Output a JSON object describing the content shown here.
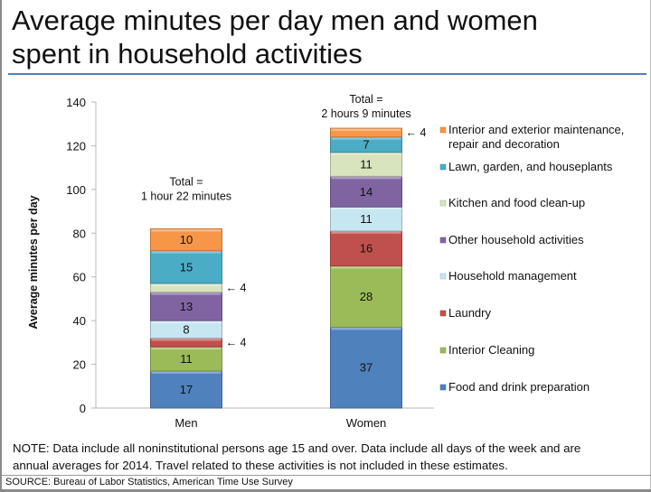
{
  "title_line1": "Average minutes per day men and women",
  "title_line2": "spent in household activities",
  "note_line1": "NOTE: Data include all noninstitutional persons age 15 and over. Data include all days of the week and are",
  "note_line2": "annual averages for 2014. Travel related to these activities is not included in these estimates.",
  "source": "SOURCE: Bureau of Labor Statistics, American Time Use Survey",
  "chart_data": {
    "type": "bar",
    "stacked": true,
    "title": "Average minutes per day men and women spent in household activities",
    "xlabel": "",
    "ylabel": "Average minutes per day",
    "ylim": [
      0,
      140
    ],
    "yticks": [
      0,
      20,
      40,
      60,
      80,
      100,
      120,
      140
    ],
    "grid": false,
    "legend_position": "right",
    "categories": [
      "Men",
      "Women"
    ],
    "series": [
      {
        "name": "Food and drink preparation",
        "color": "#4f81bd",
        "values": [
          17,
          37
        ]
      },
      {
        "name": "Interior Cleaning",
        "color": "#9bbb59",
        "values": [
          11,
          28
        ]
      },
      {
        "name": "Laundry",
        "color": "#c0504d",
        "values": [
          4,
          16
        ]
      },
      {
        "name": "Household management",
        "color": "#c6e6f2",
        "values": [
          8,
          11
        ]
      },
      {
        "name": "Other household activities",
        "color": "#8064a2",
        "values": [
          13,
          14
        ]
      },
      {
        "name": "Kitchen and food clean-up",
        "color": "#d7e4bd",
        "values": [
          4,
          11
        ]
      },
      {
        "name": "Lawn, garden, and houseplants",
        "color": "#4bacc6",
        "values": [
          15,
          7
        ]
      },
      {
        "name": "Interior and exterior maintenance, repair and decoration",
        "color": "#f79646",
        "values": [
          10,
          4
        ]
      }
    ],
    "data_labels": {
      "Men": [
        "17",
        "11",
        "",
        "8",
        "13",
        "",
        "15",
        "10"
      ],
      "Women": [
        "37",
        "28",
        "16",
        "11",
        "14",
        "11",
        "7",
        ""
      ]
    },
    "arrow_callouts": [
      {
        "category": "Men",
        "series": "Laundry",
        "text": "← 4"
      },
      {
        "category": "Men",
        "series": "Kitchen and food clean-up",
        "text": "← 4"
      },
      {
        "category": "Women",
        "series": "Interior and exterior maintenance, repair and decoration",
        "text": "← 4"
      }
    ],
    "annotations": [
      {
        "category": "Men",
        "line1": "Total =",
        "line2": "1 hour  22 minutes"
      },
      {
        "category": "Women",
        "line1": "Total =",
        "line2": "2 hours 9 minutes"
      }
    ],
    "legend_order": [
      "Interior and exterior maintenance, repair and decoration",
      "Lawn, garden, and houseplants",
      "Kitchen and food clean-up",
      "Other household activities",
      "Household management",
      "Laundry",
      "Interior Cleaning",
      "Food and drink preparation"
    ],
    "legend_lines": {
      "Interior and exterior maintenance, repair and decoration": [
        "Interior and exterior maintenance,",
        "repair and decoration"
      ]
    }
  }
}
